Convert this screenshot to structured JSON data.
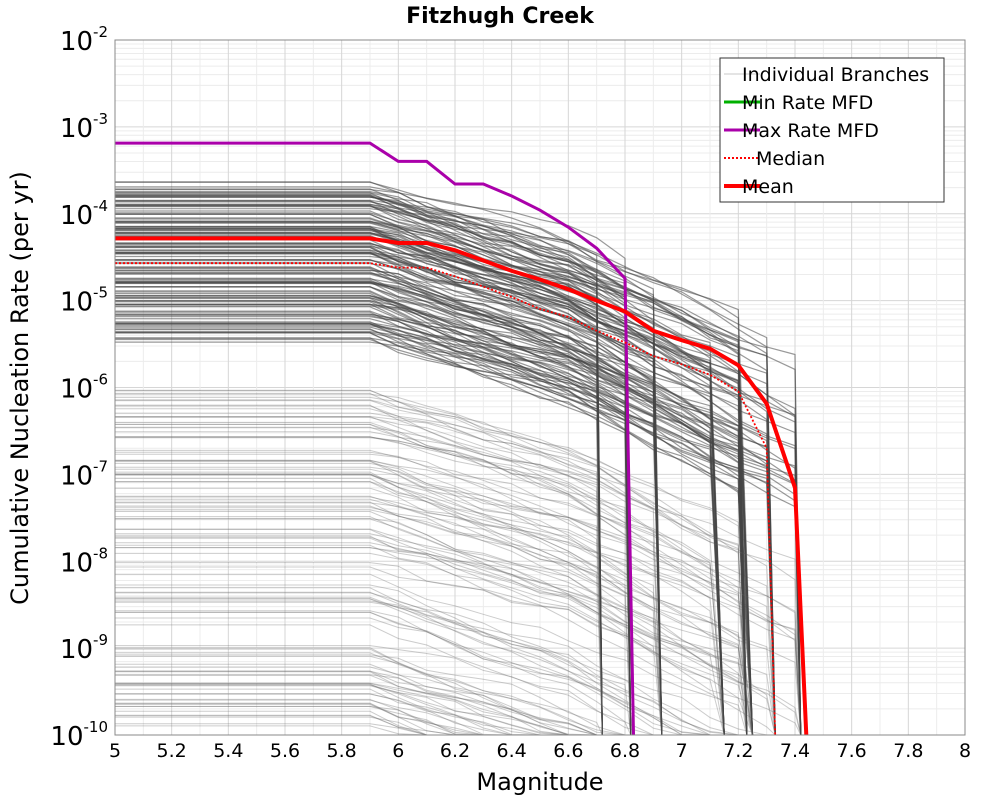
{
  "chart_data": {
    "type": "line",
    "title": "Fitzhugh Creek",
    "xlabel": "Magnitude",
    "ylabel": "Cumulative Nucleation Rate (per yr)",
    "xlim": [
      5,
      8
    ],
    "ylim": [
      1e-10,
      0.01
    ],
    "y_scale": "log",
    "grid": true,
    "legend_position": "top-right",
    "x_ticks": [
      "5",
      "5.2",
      "5.4",
      "5.6",
      "5.8",
      "6",
      "6.2",
      "6.4",
      "6.6",
      "6.8",
      "7",
      "7.2",
      "7.4",
      "7.6",
      "7.8",
      "8"
    ],
    "y_ticks": [
      {
        "base": "10",
        "exp": "-10"
      },
      {
        "base": "10",
        "exp": "-9"
      },
      {
        "base": "10",
        "exp": "-8"
      },
      {
        "base": "10",
        "exp": "-7"
      },
      {
        "base": "10",
        "exp": "-6"
      },
      {
        "base": "10",
        "exp": "-5"
      },
      {
        "base": "10",
        "exp": "-4"
      },
      {
        "base": "10",
        "exp": "-3"
      },
      {
        "base": "10",
        "exp": "-2"
      }
    ],
    "legend": [
      {
        "label": "Individual Branches",
        "color": "#c8c8c8",
        "style": "solid"
      },
      {
        "label": "Min Rate MFD",
        "color": "#00b000",
        "style": "solid"
      },
      {
        "label": "Max Rate MFD",
        "color": "#aa00aa",
        "style": "solid"
      },
      {
        "label": "Median",
        "color": "#ff0000",
        "style": "dotted"
      },
      {
        "label": "Mean",
        "color": "#ff0000",
        "style": "solid"
      }
    ],
    "series": [
      {
        "name": "Max Rate MFD",
        "color": "#aa00aa",
        "x": [
          5.0,
          5.9,
          6.0,
          6.1,
          6.2,
          6.3,
          6.4,
          6.5,
          6.6,
          6.7,
          6.8,
          6.83
        ],
        "y": [
          0.00065,
          0.00065,
          0.0004,
          0.0004,
          0.00022,
          0.00022,
          0.00016,
          0.00011,
          7e-05,
          4e-05,
          1.8e-05,
          1e-10
        ]
      },
      {
        "name": "Mean",
        "color": "#ff0000",
        "x": [
          5.0,
          5.9,
          6.0,
          6.1,
          6.2,
          6.3,
          6.4,
          6.5,
          6.6,
          6.7,
          6.8,
          6.9,
          7.0,
          7.1,
          7.2,
          7.3,
          7.4,
          7.44
        ],
        "y": [
          5.2e-05,
          5.2e-05,
          4.6e-05,
          4.6e-05,
          3.8e-05,
          2.9e-05,
          2.2e-05,
          1.75e-05,
          1.35e-05,
          1e-05,
          7.5e-06,
          4.5e-06,
          3.5e-06,
          2.8e-06,
          1.8e-06,
          6.5e-07,
          7e-08,
          1e-10
        ]
      },
      {
        "name": "Median",
        "color": "#ff0000",
        "x": [
          5.0,
          5.9,
          6.0,
          6.1,
          6.2,
          6.3,
          6.4,
          6.5,
          6.6,
          6.7,
          6.8,
          6.9,
          7.0,
          7.1,
          7.2,
          7.3,
          7.33
        ],
        "y": [
          2.7e-05,
          2.7e-05,
          2.4e-05,
          2.4e-05,
          1.9e-05,
          1.45e-05,
          1.1e-05,
          8e-06,
          6.5e-06,
          4.5e-06,
          3.3e-06,
          2.3e-06,
          1.85e-06,
          1.4e-06,
          9e-07,
          2e-07,
          1e-10
        ]
      }
    ]
  }
}
